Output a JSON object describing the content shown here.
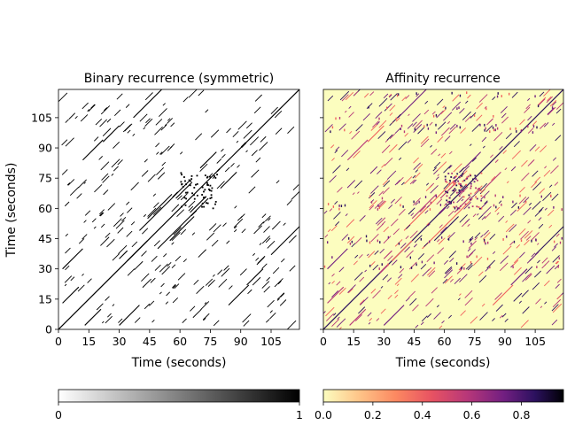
{
  "chart_data": [
    {
      "type": "heatmap",
      "title": "Binary recurrence (symmetric)",
      "xlabel": "Time (seconds)",
      "ylabel": "Time (seconds)",
      "xlim": [
        0,
        119
      ],
      "ylim": [
        0,
        119
      ],
      "xticks": [
        0,
        15,
        30,
        45,
        60,
        75,
        90,
        105
      ],
      "yticks": [
        0,
        15,
        30,
        45,
        60,
        75,
        90,
        105
      ],
      "colormap": "gray_r",
      "colorbar": {
        "ticks": [
          "0",
          "1"
        ],
        "min": 0,
        "max": 1
      },
      "background_color": "#ffffff",
      "mark_color": "#000000",
      "main_diagonal": true,
      "off_diagonal_segments": [
        {
          "x0": 34,
          "y0": 34,
          "len": 10
        },
        {
          "x0": 30,
          "y0": 35,
          "len": 4
        },
        {
          "x0": 12,
          "y0": 84,
          "len": 10
        },
        {
          "x0": 84,
          "y0": 12,
          "len": 10
        },
        {
          "x0": 37,
          "y0": 105,
          "len": 15
        },
        {
          "x0": 105,
          "y0": 37,
          "len": 15
        },
        {
          "x0": 22,
          "y0": 93,
          "len": 8
        },
        {
          "x0": 93,
          "y0": 22,
          "len": 8
        },
        {
          "x0": 40,
          "y0": 49,
          "len": 25
        },
        {
          "x0": 49,
          "y0": 40,
          "len": 25
        },
        {
          "x0": 55,
          "y0": 44,
          "len": 12
        },
        {
          "x0": 44,
          "y0": 55,
          "len": 12
        },
        {
          "x0": 2,
          "y0": 13,
          "len": 8
        },
        {
          "x0": 13,
          "y0": 2,
          "len": 8
        },
        {
          "x0": 30,
          "y0": 2,
          "len": 10
        },
        {
          "x0": 2,
          "y0": 30,
          "len": 10
        },
        {
          "x0": 58,
          "y0": 65,
          "len": 8
        },
        {
          "x0": 65,
          "y0": 58,
          "len": 8
        },
        {
          "x0": 70,
          "y0": 80,
          "len": 8
        },
        {
          "x0": 80,
          "y0": 70,
          "len": 8
        }
      ]
    },
    {
      "type": "heatmap",
      "title": "Affinity recurrence",
      "xlabel": "Time (seconds)",
      "ylabel": "",
      "xlim": [
        0,
        119
      ],
      "ylim": [
        0,
        119
      ],
      "xticks": [
        0,
        15,
        30,
        45,
        60,
        75,
        90,
        105
      ],
      "yticks": [
        0,
        15,
        30,
        45,
        60,
        75,
        90,
        105
      ],
      "colormap": "magma_r",
      "colorbar": {
        "ticks": [
          "0.0",
          "0.2",
          "0.4",
          "0.6",
          "0.8"
        ],
        "min": 0,
        "max": 0.97
      },
      "background_color": "#fcfdbf",
      "mark_colors": [
        "#f1605d",
        "#b73779",
        "#721f81",
        "#2c115f"
      ],
      "main_diagonal": true
    }
  ]
}
